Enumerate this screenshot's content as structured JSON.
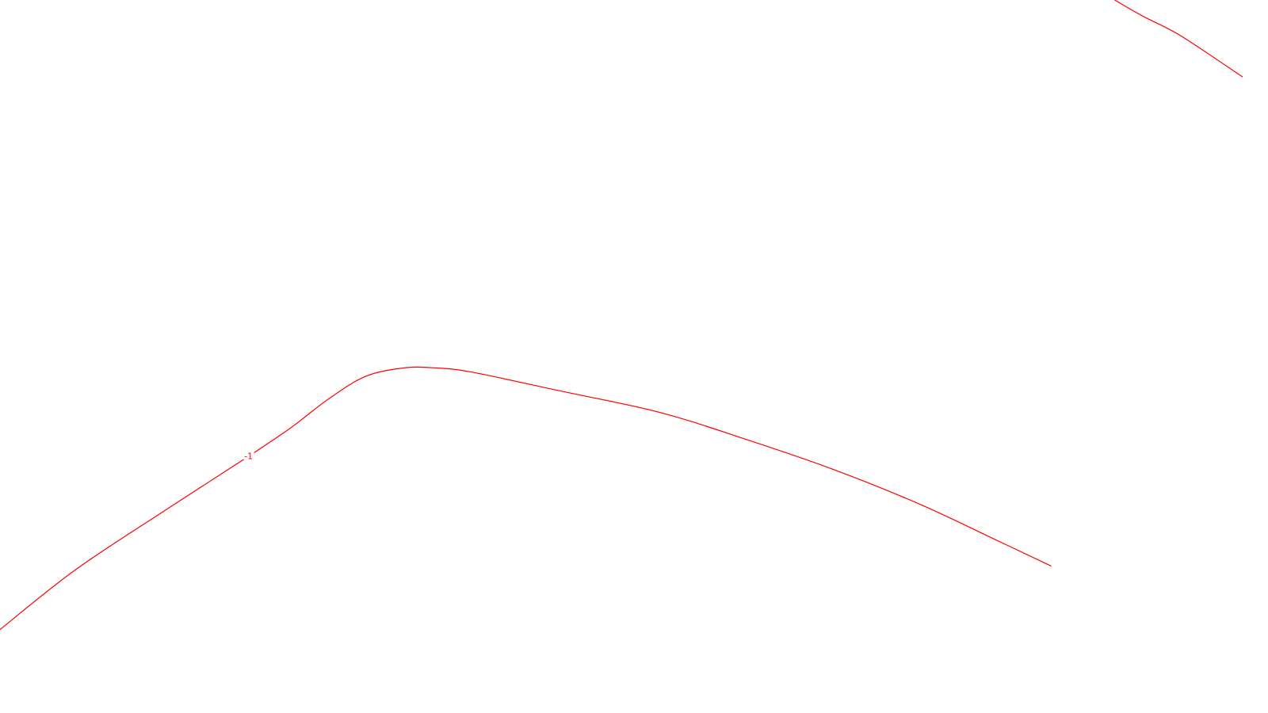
{
  "chart_data": {
    "type": "contour",
    "title": "",
    "xlabel": "",
    "ylabel": "",
    "grid": false,
    "legend": "none",
    "line_color": "#ff0000",
    "background_color": "#ffffff",
    "contours": [
      {
        "level": -1,
        "label": "-1",
        "label_anchor": 26,
        "points": [
          [
            0,
            0.117
          ],
          [
            0.06,
            0.2
          ],
          [
            0.13,
            0.281
          ],
          [
            0.2,
            0.36
          ],
          [
            0.234,
            0.4
          ],
          [
            0.264,
            0.44
          ],
          [
            0.294,
            0.472
          ],
          [
            0.325,
            0.484
          ],
          [
            0.35,
            0.484
          ],
          [
            0.38,
            0.478
          ],
          [
            0.45,
            0.452
          ],
          [
            0.53,
            0.422
          ],
          [
            0.6,
            0.384
          ],
          [
            0.67,
            0.342
          ],
          [
            0.74,
            0.293
          ],
          [
            0.8,
            0.244
          ],
          [
            0.846,
            0.206
          ]
        ]
      },
      {
        "level": null,
        "label": "",
        "points": [
          [
            0.897,
            1.0
          ],
          [
            0.92,
            0.977
          ],
          [
            0.95,
            0.95
          ],
          [
            1.0,
            0.892
          ]
        ]
      }
    ]
  }
}
